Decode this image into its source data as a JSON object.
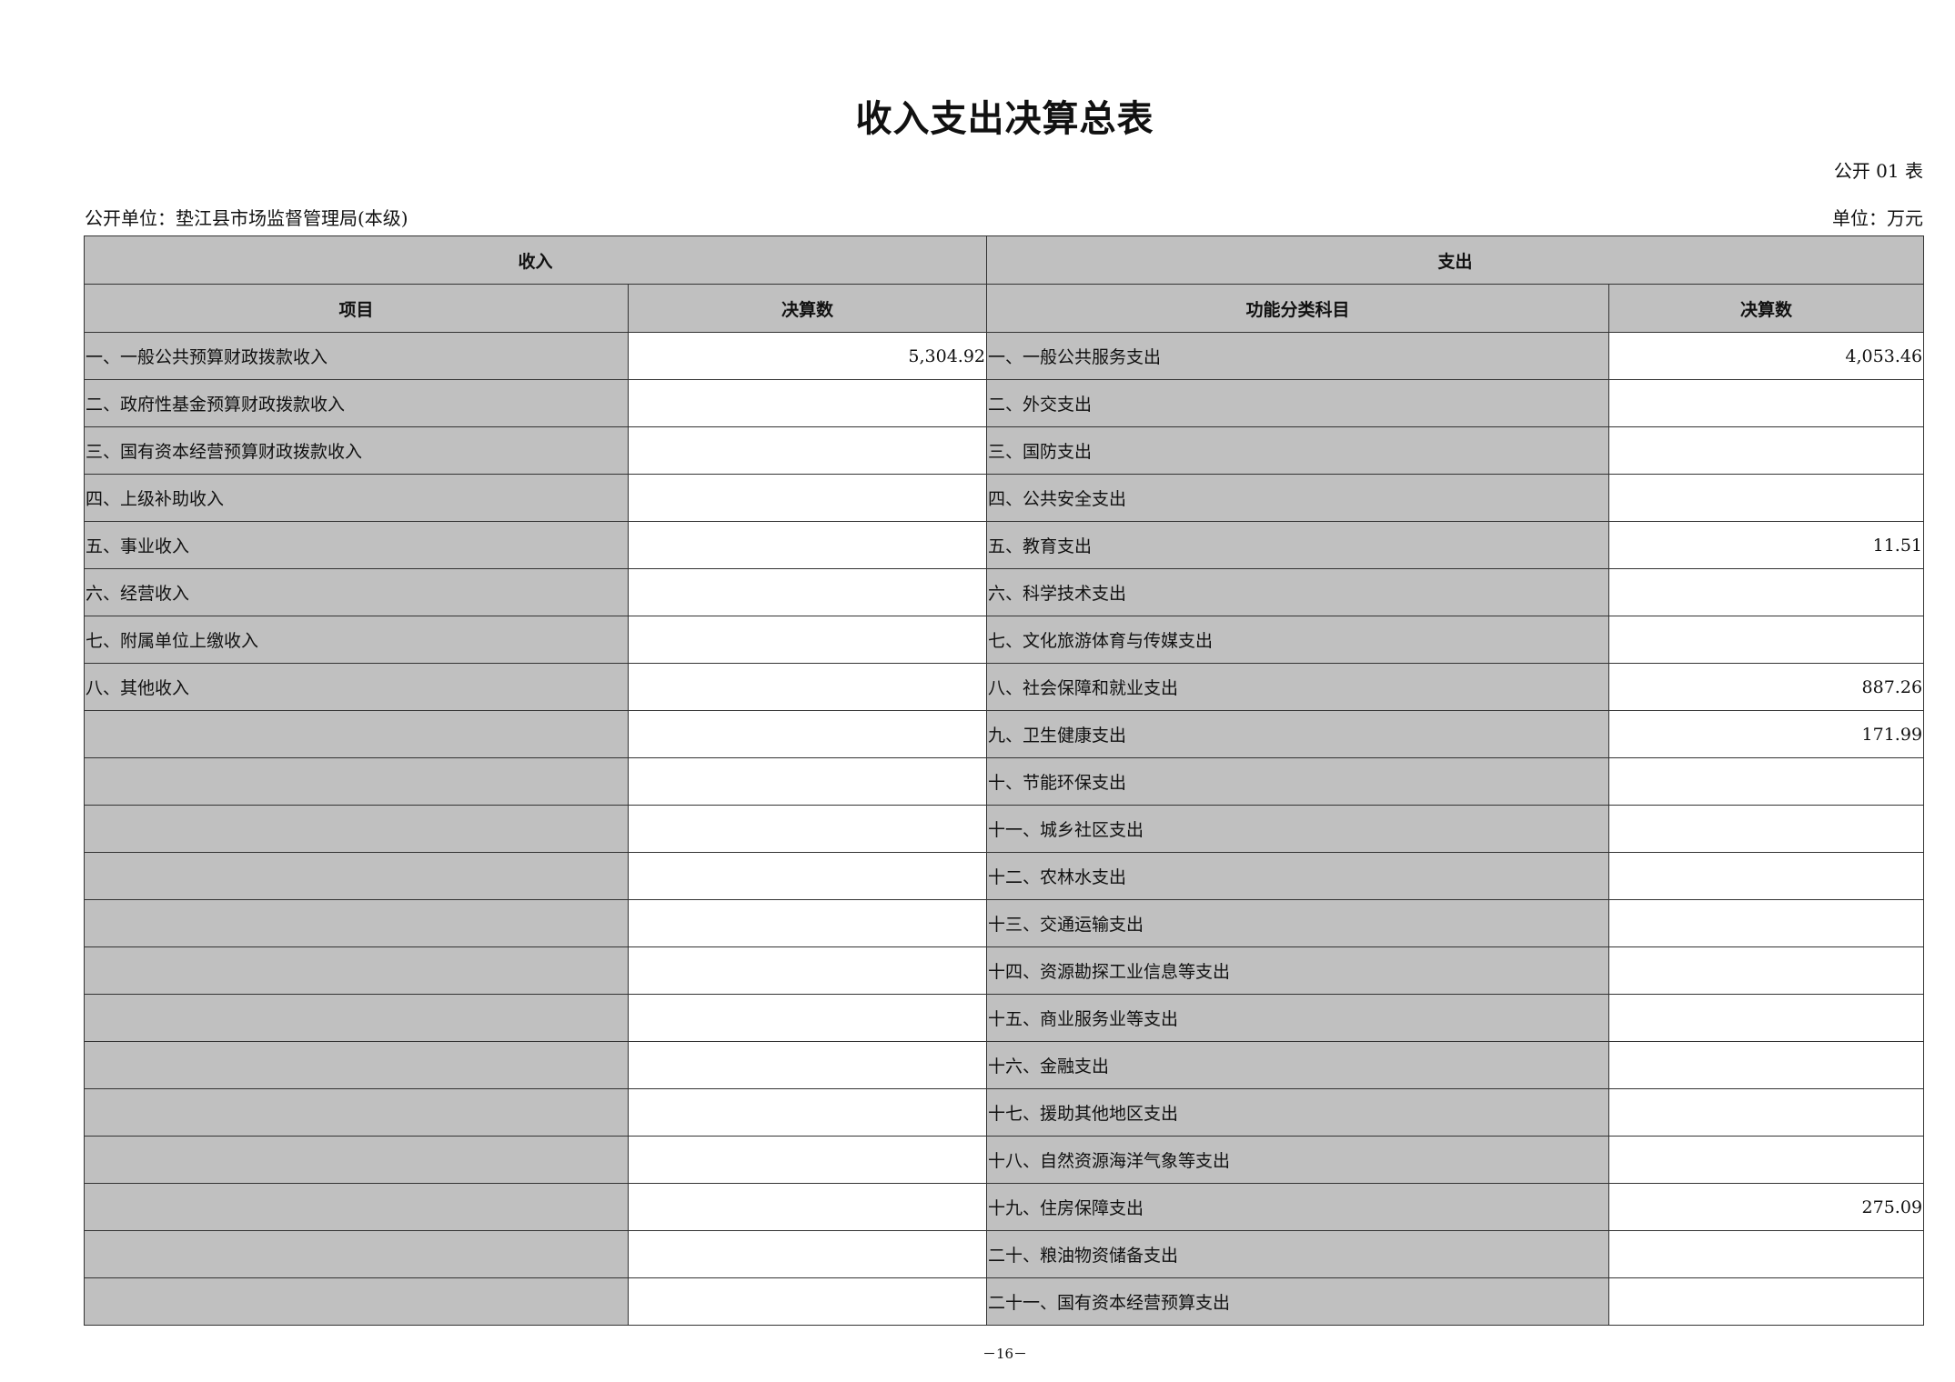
{
  "title": "收入支出决算总表",
  "table_no": "公开 01 表",
  "unit_name": "公开单位：垫江县市场监督管理局(本级)",
  "unit": "单位：万元",
  "headers": {
    "income": "收入",
    "expense": "支出",
    "item": "项目",
    "income_amount": "决算数",
    "function_item": "功能分类科目",
    "expense_amount": "决算数"
  },
  "rows": [
    {
      "income_item": "一、一般公共预算财政拨款收入",
      "income_amount": "5,304.92",
      "expense_item": "一、一般公共服务支出",
      "expense_amount": "4,053.46"
    },
    {
      "income_item": "二、政府性基金预算财政拨款收入",
      "income_amount": "",
      "expense_item": "二、外交支出",
      "expense_amount": ""
    },
    {
      "income_item": "三、国有资本经营预算财政拨款收入",
      "income_amount": "",
      "expense_item": "三、国防支出",
      "expense_amount": ""
    },
    {
      "income_item": "四、上级补助收入",
      "income_amount": "",
      "expense_item": "四、公共安全支出",
      "expense_amount": ""
    },
    {
      "income_item": "五、事业收入",
      "income_amount": "",
      "expense_item": "五、教育支出",
      "expense_amount": "11.51"
    },
    {
      "income_item": "六、经营收入",
      "income_amount": "",
      "expense_item": "六、科学技术支出",
      "expense_amount": ""
    },
    {
      "income_item": "七、附属单位上缴收入",
      "income_amount": "",
      "expense_item": "七、文化旅游体育与传媒支出",
      "expense_amount": ""
    },
    {
      "income_item": "八、其他收入",
      "income_amount": "",
      "expense_item": "八、社会保障和就业支出",
      "expense_amount": "887.26"
    },
    {
      "income_item": "",
      "income_amount": "",
      "expense_item": "九、卫生健康支出",
      "expense_amount": "171.99"
    },
    {
      "income_item": "",
      "income_amount": "",
      "expense_item": "十、节能环保支出",
      "expense_amount": ""
    },
    {
      "income_item": "",
      "income_amount": "",
      "expense_item": "十一、城乡社区支出",
      "expense_amount": ""
    },
    {
      "income_item": "",
      "income_amount": "",
      "expense_item": "十二、农林水支出",
      "expense_amount": ""
    },
    {
      "income_item": "",
      "income_amount": "",
      "expense_item": "十三、交通运输支出",
      "expense_amount": ""
    },
    {
      "income_item": "",
      "income_amount": "",
      "expense_item": "十四、资源勘探工业信息等支出",
      "expense_amount": ""
    },
    {
      "income_item": "",
      "income_amount": "",
      "expense_item": "十五、商业服务业等支出",
      "expense_amount": ""
    },
    {
      "income_item": "",
      "income_amount": "",
      "expense_item": "十六、金融支出",
      "expense_amount": ""
    },
    {
      "income_item": "",
      "income_amount": "",
      "expense_item": "十七、援助其他地区支出",
      "expense_amount": ""
    },
    {
      "income_item": "",
      "income_amount": "",
      "expense_item": "十八、自然资源海洋气象等支出",
      "expense_amount": ""
    },
    {
      "income_item": "",
      "income_amount": "",
      "expense_item": "十九、住房保障支出",
      "expense_amount": "275.09"
    },
    {
      "income_item": "",
      "income_amount": "",
      "expense_item": "二十、粮油物资储备支出",
      "expense_amount": ""
    },
    {
      "income_item": "",
      "income_amount": "",
      "expense_item": "二十一、国有资本经营预算支出",
      "expense_amount": ""
    }
  ],
  "page_number": "－16－",
  "colors": {
    "header_fill": "#c0c0c0",
    "border": "#333333"
  }
}
